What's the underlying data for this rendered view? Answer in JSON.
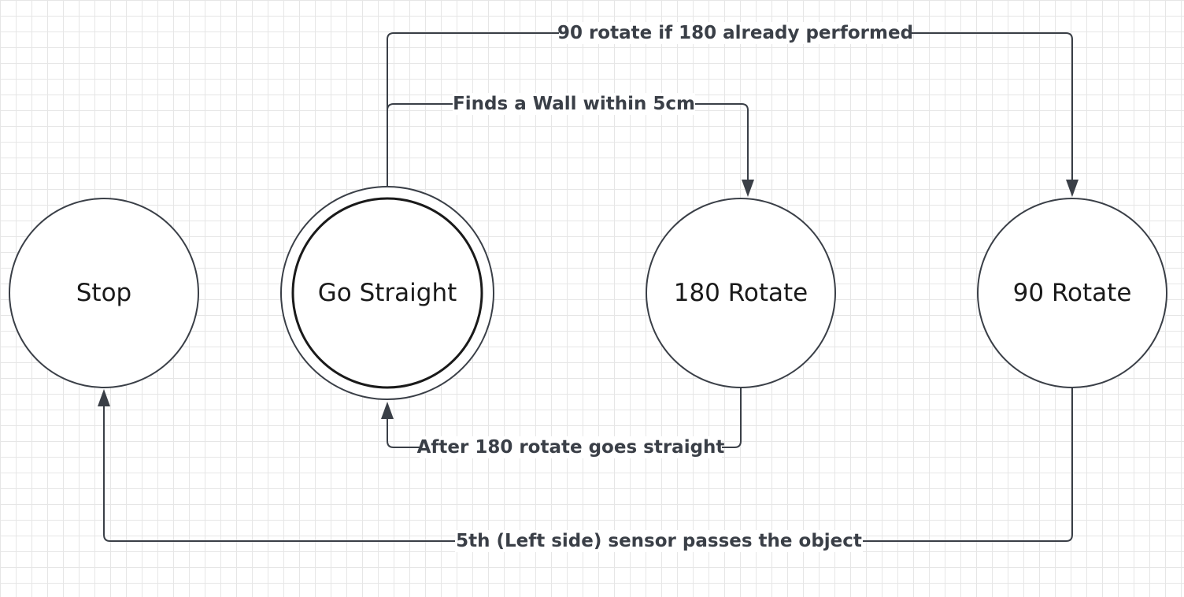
{
  "diagram": {
    "states": [
      {
        "id": "stop",
        "label": "Stop"
      },
      {
        "id": "go-straight",
        "label": "Go Straight",
        "accepting": true
      },
      {
        "id": "rotate-180",
        "label": "180 Rotate"
      },
      {
        "id": "rotate-90",
        "label": "90 Rotate"
      }
    ],
    "transitions": [
      {
        "from": "go-straight",
        "to": "rotate-90",
        "label": "90 rotate if 180 already performed"
      },
      {
        "from": "go-straight",
        "to": "rotate-180",
        "label": "Finds a Wall within 5cm"
      },
      {
        "from": "rotate-180",
        "to": "go-straight",
        "label": "After 180 rotate goes straight"
      },
      {
        "from": "rotate-90",
        "to": "stop",
        "label": "5th (Left side) sensor passes the object"
      }
    ],
    "colors": {
      "line": "#3a3f47",
      "text": "#1a1a1a",
      "grid": "#e6e6e6",
      "background": "#ffffff"
    }
  }
}
